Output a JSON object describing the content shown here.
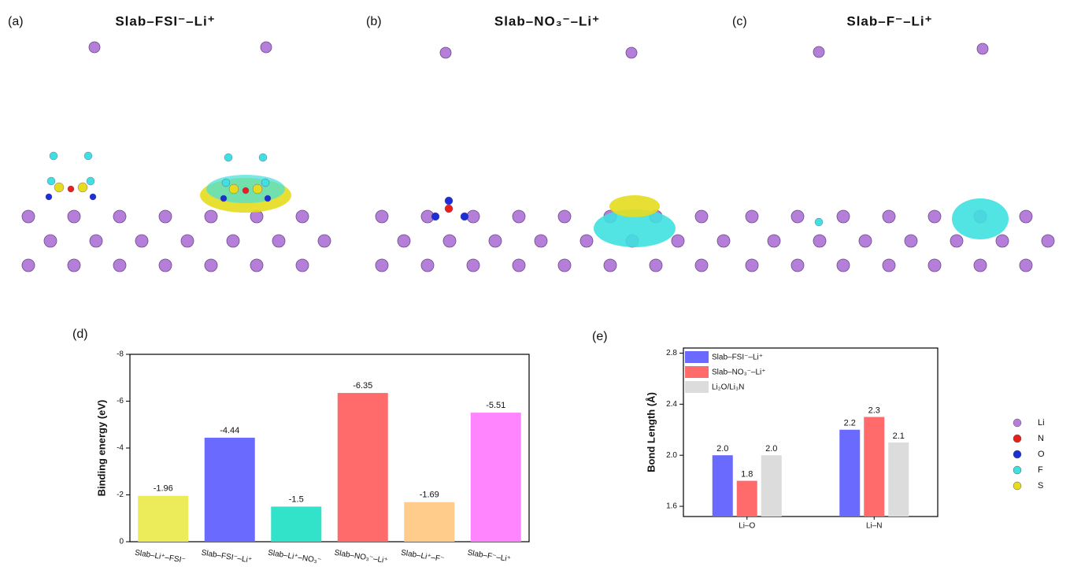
{
  "panels": {
    "labels": [
      "(a)",
      "(b)",
      "(c)"
    ],
    "titles": [
      "Slab–FSI⁻–Li⁺",
      "Slab–NO₃⁻–Li⁺",
      "Slab–F⁻–Li⁺"
    ]
  },
  "atom_legend": [
    {
      "label": "Li",
      "color": "#b57fd9"
    },
    {
      "label": "N",
      "color": "#e8201c"
    },
    {
      "label": "O",
      "color": "#1a2fd6"
    },
    {
      "label": "F",
      "color": "#3fe0e0"
    },
    {
      "label": "S",
      "color": "#e6dc1e"
    }
  ],
  "chart_data": [
    {
      "type": "bar",
      "title": "(d)",
      "y_label": "Binding energy (eV)",
      "categories": [
        "Slab–Li⁺–FSI⁻",
        "Slab–FSI⁻–Li⁺",
        "Slab–Li⁺–NO₃⁻",
        "Slab–NO₃⁻–Li⁺",
        "Slab–Li⁺–F⁻",
        "Slab–F⁻–Li⁺"
      ],
      "values": [
        -1.96,
        -4.44,
        -1.5,
        -6.35,
        -1.69,
        -5.51
      ],
      "colors": [
        "#ecec5a",
        "#6a6aff",
        "#33e3c9",
        "#ff6b6b",
        "#ffcc8c",
        "#ff85ff"
      ],
      "ylim": [
        0,
        -8
      ],
      "yticks": [
        0,
        -2,
        -4,
        -6,
        -8
      ]
    },
    {
      "type": "grouped_bar",
      "title": "(e)",
      "y_label": "Bond Length (Å)",
      "categories": [
        "Li–O",
        "Li–N"
      ],
      "series": [
        {
          "name": "Slab–FSI⁻–Li⁺",
          "color": "#6a6aff",
          "values": [
            2.0,
            2.2
          ],
          "value_labels": [
            "2.0",
            "2.2"
          ]
        },
        {
          "name": "Slab–NO₃⁻–Li⁺",
          "color": "#ff6b6b",
          "values": [
            1.8,
            2.3
          ],
          "value_labels": [
            "1.8",
            "2.3"
          ]
        },
        {
          "name": "Li₂O/Li₃N",
          "color": "#dcdcdc",
          "values": [
            2.0,
            2.1
          ],
          "value_labels": [
            "2.0",
            "2.1"
          ]
        }
      ],
      "ylim": [
        1.52,
        2.84
      ],
      "yticks": [
        {
          "value": 1.6,
          "label": "1.6"
        },
        {
          "value": 2.0,
          "label": "2.0"
        },
        {
          "value": 2.4,
          "label": "2.4"
        },
        {
          "value": 2.8,
          "label": "2.8"
        }
      ],
      "legend": "top-left"
    }
  ]
}
